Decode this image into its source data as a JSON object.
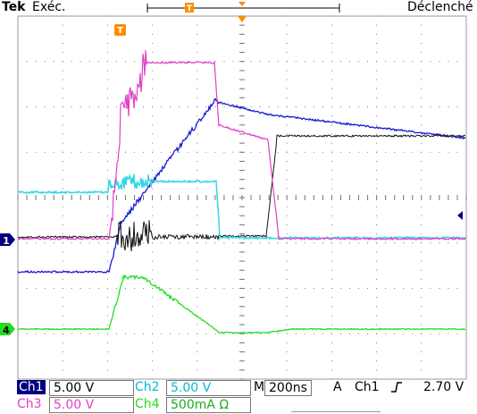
{
  "header": {
    "brand": "Tek",
    "mode": "Exéc.",
    "trigger_status": "Déclenché"
  },
  "markers": {
    "trigger_pos": "T",
    "ch1_ground": "1",
    "ch4_ground": "4"
  },
  "channels": [
    {
      "id": "Ch1",
      "scale": "5.00 V",
      "color": "#000000"
    },
    {
      "id": "Ch2",
      "scale": "5.00 V",
      "color": "#00bcd4"
    },
    {
      "id": "Ch3",
      "scale": "5.00 V",
      "color": "#e040c8"
    },
    {
      "id": "Ch4",
      "scale": "500mA Ω",
      "color": "#22dd22"
    }
  ],
  "timebase": {
    "label": "M",
    "value": "200ns"
  },
  "trigger": {
    "label": "A",
    "source": "Ch1",
    "slope": "rising-edge-icon",
    "level": "2.70 V"
  },
  "colors": {
    "ch1_trace": "#111111",
    "ch2_trace": "#33d6e6",
    "ch3_trace": "#e040c8",
    "ch4_trace": "#22dd22",
    "blue_trace": "#1a1ad6",
    "channel_tag_bg": "#000080",
    "ch2_tag_bg": "#00bcd4",
    "ch3_tag_bg": "#e040c8",
    "ch4_tag_bg": "#22dd22",
    "grid": "#888888",
    "accent": "#ff8c00"
  }
}
